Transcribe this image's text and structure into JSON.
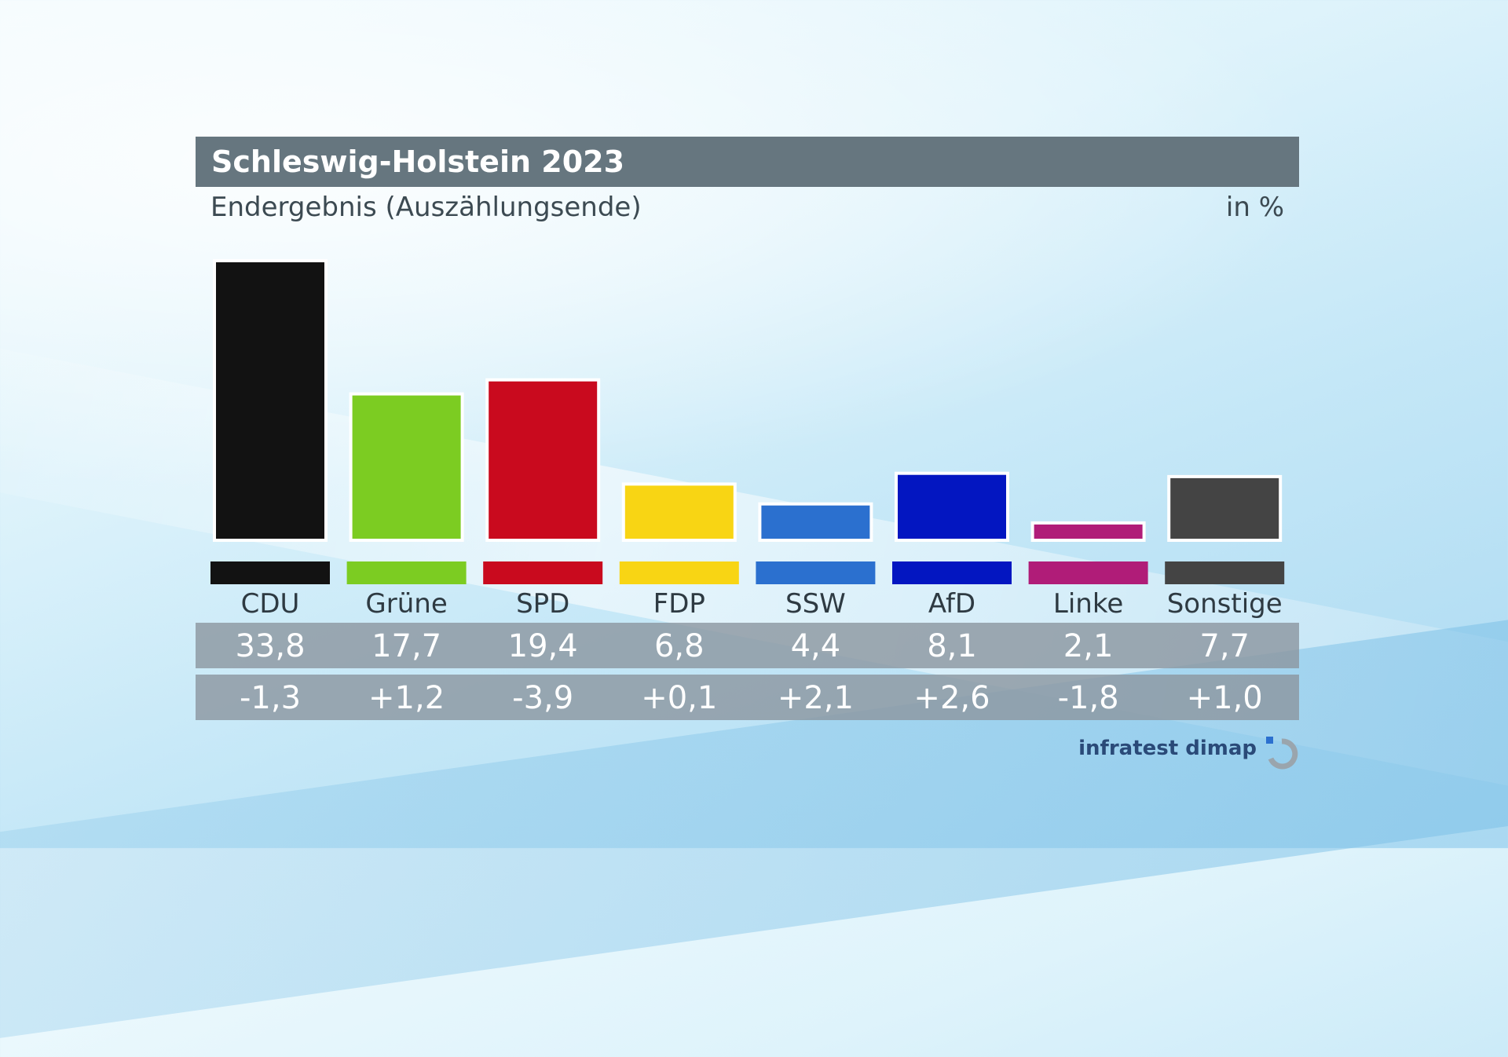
{
  "header": {
    "title": "Schleswig-Holstein 2023",
    "subtitle": "Endergebnis (Auszählungsende)",
    "unit": "in %"
  },
  "footer": {
    "brand": "infratest dimap",
    "logo_icon": "infratest-dimap-logo-icon"
  },
  "chart_data": {
    "type": "bar",
    "title": "Schleswig-Holstein 2023",
    "subtitle": "Endergebnis (Auszählungsende)",
    "ylabel": "in %",
    "xlabel": "",
    "ylim": [
      0,
      36
    ],
    "grid": false,
    "categories": [
      "CDU",
      "Grüne",
      "SPD",
      "FDP",
      "SSW",
      "AfD",
      "Linke",
      "Sonstige"
    ],
    "values": [
      33.8,
      17.7,
      19.4,
      6.8,
      4.4,
      8.1,
      2.1,
      7.7
    ],
    "value_labels": [
      "33,8",
      "17,7",
      "19,4",
      "6,8",
      "4,4",
      "8,1",
      "2,1",
      "7,7"
    ],
    "change_labels": [
      "-1,3",
      "+1,2",
      "-3,9",
      "+0,1",
      "+2,1",
      "+2,6",
      "-1,8",
      "+1,0"
    ],
    "changes": [
      -1.3,
      1.2,
      -3.9,
      0.1,
      2.1,
      2.6,
      -1.8,
      1.0
    ],
    "colors": [
      "#121212",
      "#7ccc22",
      "#c90a1e",
      "#f8d514",
      "#2b70cf",
      "#0316c1",
      "#b01c78",
      "#444444"
    ]
  }
}
